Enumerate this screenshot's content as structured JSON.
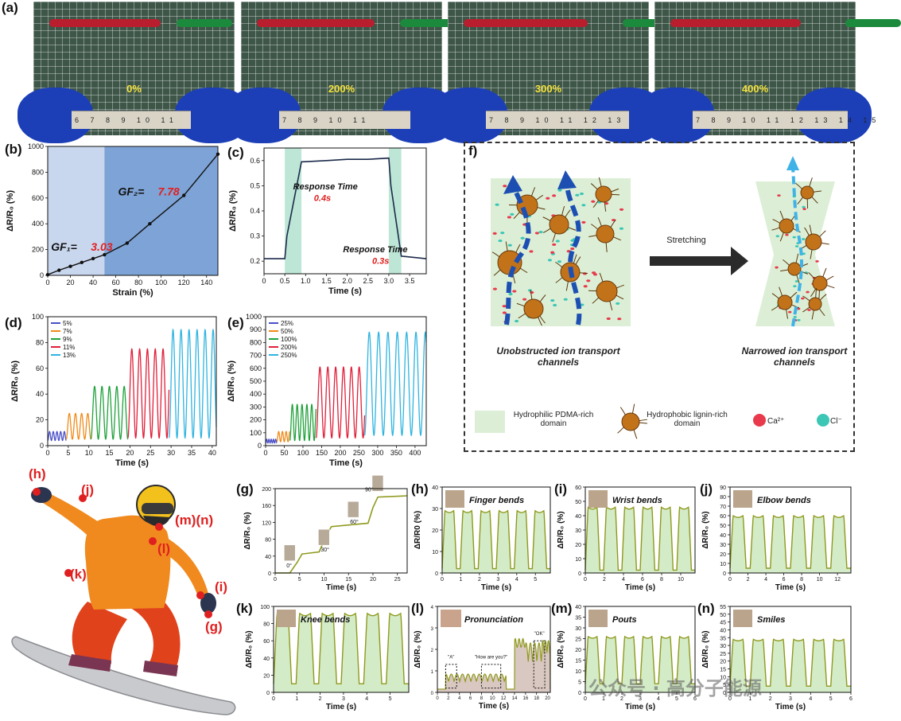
{
  "panel_labels": {
    "a": "(a)",
    "b": "(b)",
    "c": "(c)",
    "d": "(d)",
    "e": "(e)",
    "f": "f)",
    "g": "(g)",
    "h": "(h)",
    "i": "(i)",
    "j": "(j)",
    "k": "(k)",
    "l": "(l)",
    "m": "(m)",
    "n": "(n)"
  },
  "photos": [
    {
      "strain": "0%",
      "ruler": "6 7 8 9 10 11"
    },
    {
      "strain": "200%",
      "ruler": "7 8 9 10 11"
    },
    {
      "strain": "300%",
      "ruler": "7 8 9 10 11 12 13"
    },
    {
      "strain": "400%",
      "ruler": "7 8 9 10 11 12 13 14 15"
    }
  ],
  "colors": {
    "gauge_bg1": "#c9d7ee",
    "gauge_bg2": "#7ea3d6",
    "resp_band": "#bde6d6",
    "olive": "#8f9a1d",
    "olive_fill": "#d4ebc8",
    "red": "#e02020",
    "ion_arrow": "#1d4fb3",
    "ion_arrow2": "#3fb2e8",
    "domain_fill": "#dcefd6"
  },
  "chart_data": [
    {
      "id": "b",
      "type": "line",
      "xlabel": "Strain (%)",
      "ylabel": "ΔR/R₀ (%)",
      "xlim": [
        0,
        150
      ],
      "ylim": [
        0,
        1000
      ],
      "xticks": [
        "0",
        "20",
        "40",
        "60",
        "80",
        "100",
        "120",
        "140"
      ],
      "yticks": [
        "0",
        "200",
        "400",
        "600",
        "800",
        "1000"
      ],
      "x": [
        0,
        10,
        20,
        30,
        40,
        50,
        70,
        90,
        120,
        150
      ],
      "y": [
        5,
        40,
        70,
        100,
        130,
        160,
        250,
        400,
        620,
        940
      ],
      "annotations": [
        {
          "label": "GF₁=",
          "value": "3.03"
        },
        {
          "label": "GF₂=",
          "value": "7.78"
        }
      ]
    },
    {
      "id": "c",
      "type": "line",
      "xlabel": "Time (s)",
      "ylabel": "ΔR/R₀ (%)",
      "xlim": [
        0,
        3.9
      ],
      "ylim": [
        0.15,
        0.65
      ],
      "xticks": [
        "0",
        "0.5",
        "1.0",
        "1.5",
        "2.0",
        "2.5",
        "3.0",
        "3.5"
      ],
      "yticks": [
        "0.2",
        "0.3",
        "0.4",
        "0.5",
        "0.6"
      ],
      "x": [
        0,
        0.5,
        0.55,
        0.9,
        1.5,
        2.0,
        2.5,
        3.0,
        3.05,
        3.3,
        3.9
      ],
      "y": [
        0.21,
        0.21,
        0.3,
        0.595,
        0.6,
        0.605,
        0.605,
        0.61,
        0.5,
        0.22,
        0.21
      ],
      "bands": [
        [
          0.5,
          0.9
        ],
        [
          3.0,
          3.3
        ]
      ],
      "annotations": [
        {
          "label": "Response Time",
          "value": "0.4s"
        },
        {
          "label": "Response Time",
          "value": "0.3s"
        }
      ]
    },
    {
      "id": "d",
      "type": "line",
      "xlabel": "Time (s)",
      "ylabel": "ΔR/R₀ (%)",
      "xlim": [
        0,
        41
      ],
      "ylim": [
        0,
        100
      ],
      "xticks": [
        "0",
        "5",
        "10",
        "15",
        "20",
        "25",
        "30",
        "35",
        "40"
      ],
      "yticks": [
        "0",
        "20",
        "40",
        "60",
        "80",
        "100"
      ],
      "series": [
        {
          "name": "5%",
          "color": "#4a50c8",
          "t0": 0,
          "t1": 4.5,
          "period": 0.9,
          "amp": 7,
          "base": 4
        },
        {
          "name": "7%",
          "color": "#f08a1a",
          "t0": 4.5,
          "t1": 10.5,
          "period": 1.5,
          "amp": 20,
          "base": 5
        },
        {
          "name": "9%",
          "color": "#1fa13a",
          "t0": 10.5,
          "t1": 19.5,
          "period": 1.8,
          "amp": 41,
          "base": 5
        },
        {
          "name": "11%",
          "color": "#e0203a",
          "t0": 19.5,
          "t1": 29.5,
          "period": 1.9,
          "amp": 69,
          "base": 6
        },
        {
          "name": "13%",
          "color": "#2fb4e0",
          "t0": 29.5,
          "t1": 41,
          "period": 1.95,
          "amp": 84,
          "base": 6
        }
      ]
    },
    {
      "id": "e",
      "type": "line",
      "xlabel": "Time (s)",
      "ylabel": "ΔR/R₀ (%)",
      "xlim": [
        0,
        430
      ],
      "ylim": [
        0,
        1000
      ],
      "xticks": [
        "0",
        "50",
        "100",
        "150",
        "200",
        "250",
        "300",
        "350",
        "400"
      ],
      "yticks": [
        "0",
        "100",
        "200",
        "300",
        "400",
        "500",
        "600",
        "700",
        "800",
        "900",
        "1000"
      ],
      "series": [
        {
          "name": "25%",
          "color": "#4a50c8",
          "t0": 0,
          "t1": 30,
          "period": 6,
          "amp": 30,
          "base": 20
        },
        {
          "name": "50%",
          "color": "#f08a1a",
          "t0": 30,
          "t1": 65,
          "period": 10,
          "amp": 80,
          "base": 30
        },
        {
          "name": "100%",
          "color": "#1fa13a",
          "t0": 65,
          "t1": 135,
          "period": 13,
          "amp": 280,
          "base": 40
        },
        {
          "name": "200%",
          "color": "#e0203a",
          "t0": 135,
          "t1": 265,
          "period": 21,
          "amp": 550,
          "base": 60
        },
        {
          "name": "250%",
          "color": "#2fb4e0",
          "t0": 265,
          "t1": 430,
          "period": 25,
          "amp": 800,
          "base": 80
        }
      ]
    },
    {
      "id": "g",
      "type": "line",
      "xlabel": "Time (s)",
      "ylabel": "ΔR/R₀ (%)",
      "xlim": [
        0,
        27
      ],
      "ylim": [
        0,
        200
      ],
      "xticks": [
        "0",
        "5",
        "10",
        "15",
        "20",
        "25"
      ],
      "yticks": [
        "0",
        "40",
        "80",
        "120",
        "160",
        "200"
      ],
      "x": [
        0,
        3,
        4.5,
        5.5,
        9,
        10.5,
        11.5,
        19,
        20,
        21,
        27
      ],
      "y": [
        0,
        0,
        25,
        45,
        50,
        90,
        110,
        118,
        155,
        180,
        183
      ],
      "annotations": [
        "0°",
        "30°",
        "60°",
        "90°"
      ]
    },
    {
      "id": "h",
      "type": "area",
      "title": "Finger bends",
      "xlabel": "Time (s)",
      "ylabel": "ΔR/R0 (%)",
      "xlim": [
        0,
        5.8
      ],
      "ylim": [
        0,
        40
      ],
      "xticks": [
        "0",
        "1",
        "2",
        "3",
        "4",
        "5"
      ],
      "yticks": [
        "0",
        "10",
        "20",
        "30",
        "40"
      ],
      "cycles": 6,
      "peak": 29,
      "base": 2
    },
    {
      "id": "i",
      "type": "area",
      "title": "Wrist bends",
      "xlabel": "Time (s)",
      "ylabel": "ΔR/R₀ (%)",
      "xlim": [
        0,
        11.5
      ],
      "ylim": [
        0,
        60
      ],
      "xticks": [
        "0",
        "2",
        "4",
        "6",
        "8",
        "10"
      ],
      "yticks": [
        "0",
        "10",
        "20",
        "30",
        "40",
        "50",
        "60"
      ],
      "cycles": 6,
      "peak": 46,
      "base": 2
    },
    {
      "id": "j",
      "type": "area",
      "title": "Elbow bends",
      "xlabel": "Time (s)",
      "ylabel": "ΔR/R₀ (%)",
      "xlim": [
        0,
        13.5
      ],
      "ylim": [
        0,
        90
      ],
      "xticks": [
        "0",
        "2",
        "4",
        "6",
        "8",
        "10",
        "12"
      ],
      "yticks": [
        "0",
        "10",
        "20",
        "30",
        "40",
        "50",
        "60",
        "70",
        "80",
        "90"
      ],
      "cycles": 6,
      "peak": 60,
      "base": 5
    },
    {
      "id": "k",
      "type": "area",
      "title": "Knee bends",
      "xlabel": "Time (s)",
      "ylabel": "ΔR/R₀ (%)",
      "xlim": [
        0,
        5.8
      ],
      "ylim": [
        0,
        100
      ],
      "xticks": [
        "0",
        "1",
        "2",
        "3",
        "4",
        "5"
      ],
      "yticks": [
        "0",
        "20",
        "40",
        "60",
        "80",
        "100"
      ],
      "cycles": 6,
      "peak": 92,
      "base": 10
    },
    {
      "id": "l",
      "type": "area",
      "title": "Pronunciation",
      "xlabel": "Time (s)",
      "ylabel": "ΔR/R₀ (%)",
      "xlim": [
        0,
        20.5
      ],
      "ylim": [
        0,
        4
      ],
      "xticks": [
        "0",
        "2",
        "4",
        "6",
        "8",
        "10",
        "12",
        "14",
        "16",
        "18",
        "20"
      ],
      "yticks": [
        "0",
        "1",
        "2",
        "3",
        "4"
      ],
      "words": [
        "\"A\"",
        "\"How are you?\"",
        "\"OK\""
      ]
    },
    {
      "id": "m",
      "type": "area",
      "title": "Pouts",
      "xlabel": "Time (s)",
      "ylabel": "ΔR/R₀ (%)",
      "xlim": [
        0,
        6
      ],
      "ylim": [
        0,
        40
      ],
      "xticks": [
        "0",
        "1",
        "2",
        "3",
        "4",
        "5",
        "6"
      ],
      "yticks": [
        "0",
        "5",
        "10",
        "15",
        "20",
        "25",
        "30",
        "35",
        "40"
      ],
      "cycles": 6,
      "peak": 26,
      "base": 4
    },
    {
      "id": "n",
      "type": "area",
      "title": "Smiles",
      "xlabel": "Time (s)",
      "ylabel": "ΔR/R₀ (%)",
      "xlim": [
        0,
        6
      ],
      "ylim": [
        0,
        55
      ],
      "xticks": [
        "0",
        "1",
        "2",
        "3",
        "4",
        "5",
        "6"
      ],
      "yticks": [
        "0",
        "5",
        "10",
        "15",
        "20",
        "25",
        "30",
        "35",
        "40",
        "45",
        "50",
        "55"
      ],
      "cycles": 6,
      "peak": 34,
      "base": 4
    }
  ],
  "schematic": {
    "stretch_label": "Stretching",
    "left_caption": "Unobstructed ion transport channels",
    "right_caption": "Narrowed ion transport channels",
    "legend": [
      {
        "label": "Hydrophilic PDMA-rich domain"
      },
      {
        "label": "Hydrophobic lignin-rich domain"
      },
      {
        "label": "Ca²⁺",
        "color": "#e83a4c"
      },
      {
        "label": "Cl⁻",
        "color": "#3cc6b6"
      }
    ]
  },
  "body_labels": [
    "(h)",
    "(j)",
    "(m)(n)",
    "(l)",
    "(k)",
    "(i)",
    "(g)"
  ],
  "watermark": "公众号 · 高分子能源"
}
